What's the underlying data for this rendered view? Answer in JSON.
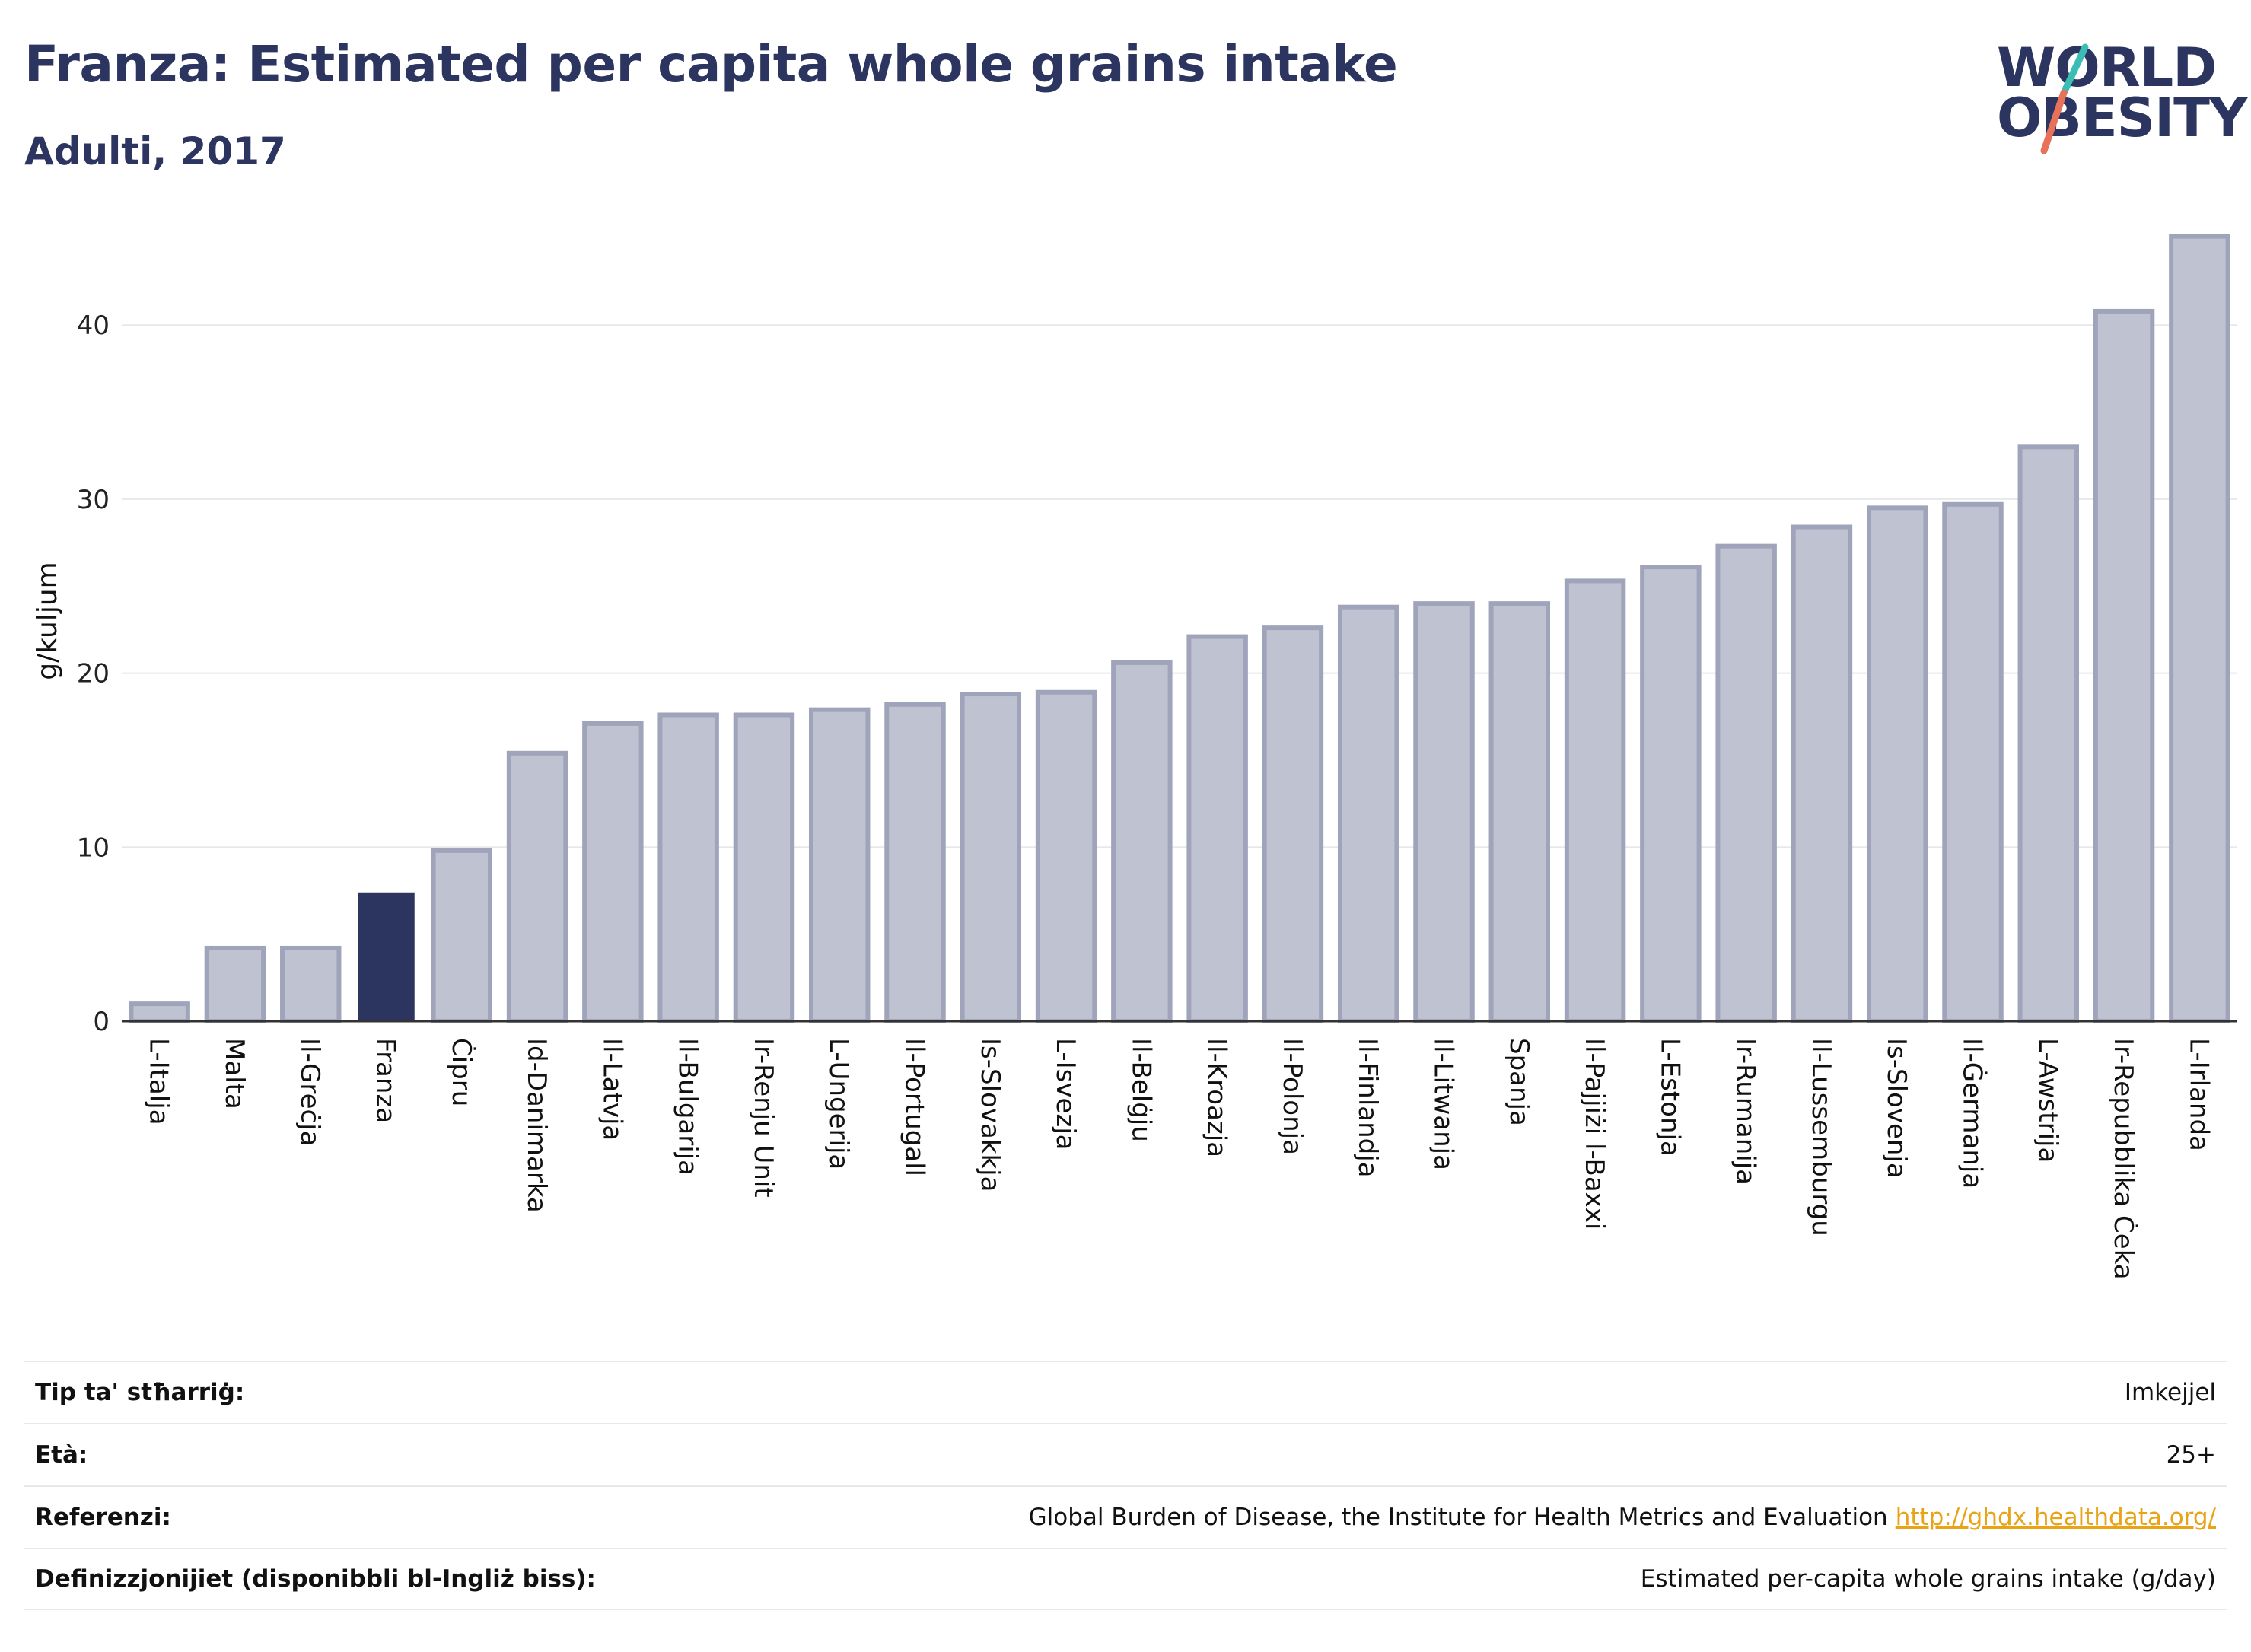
{
  "header": {
    "title": "Franza: Estimated per capita whole grains intake",
    "subtitle": "Adulti, 2017"
  },
  "logo": {
    "line1": "WORLD",
    "line2": "OBESITY",
    "accent_teal": "#3bbdb5",
    "accent_coral": "#e8715a"
  },
  "colors": {
    "highlight_bar": "#2b3560",
    "other_bar_fill": "#bfc2d0",
    "other_bar_stroke": "#9fa4bb",
    "axis": "#333333",
    "grid": "#e6e8ec"
  },
  "chart_data": {
    "type": "bar",
    "title": "Franza: Estimated per capita whole grains intake",
    "subtitle": "Adulti, 2017",
    "ylabel": "g/kuljum",
    "xlabel": "",
    "ylim": [
      0,
      46
    ],
    "yticks": [
      0,
      10,
      20,
      30,
      40
    ],
    "grid": true,
    "highlight": "Franza",
    "categories": [
      "L-Italja",
      "Malta",
      "Il-Greċja",
      "Franza",
      "Ċipru",
      "Id-Danimarka",
      "Il-Latvja",
      "Il-Bulgarija",
      "Ir-Renju Unit",
      "L-Ungerija",
      "Il-Portugall",
      "Is-Slovakkja",
      "L-Isvezja",
      "Il-Belġju",
      "Il-Kroazja",
      "Il-Polonja",
      "Il-Finlandja",
      "Il-Litwanja",
      "Spanja",
      "Il-Pajjiżi l-Baxxi",
      "L-Estonja",
      "Ir-Rumanija",
      "Il-Lussemburgu",
      "Is-Slovenja",
      "Il-Ġermanja",
      "L-Awstrija",
      "Ir-Repubblika Ċeka",
      "L-Irlanda"
    ],
    "values": [
      1.0,
      4.2,
      4.2,
      7.4,
      9.8,
      15.4,
      17.1,
      17.6,
      17.6,
      17.9,
      18.2,
      18.8,
      18.9,
      20.6,
      22.1,
      22.6,
      23.8,
      24.0,
      24.0,
      25.3,
      26.1,
      27.3,
      28.4,
      29.5,
      29.7,
      33.0,
      40.8,
      45.1
    ]
  },
  "meta": {
    "rows": [
      {
        "key": "Tip ta' stħarriġ:",
        "value": "Imkejjel"
      },
      {
        "key": "Età:",
        "value": "25+"
      },
      {
        "key": "Referenzi:",
        "value": "Global Burden of Disease, the Institute for Health Metrics and Evaluation",
        "link": "http://ghdx.healthdata.org/"
      },
      {
        "key": "Definizzjonijiet (disponibbli bl-Ingliż biss):",
        "value": "Estimated per-capita whole grains intake (g/day)"
      }
    ]
  }
}
